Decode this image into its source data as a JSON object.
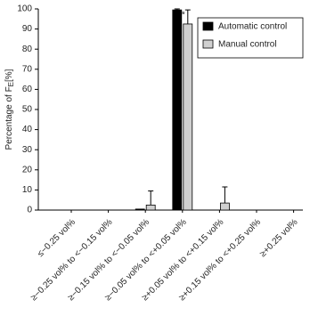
{
  "chart_data": {
    "type": "bar",
    "ylabel": "Percentage of F",
    "ylabel_sub": "E",
    "ylabel_suffix": "[%]",
    "categories": [
      "≤−0.25 vol%",
      "≥−0.25 vol% to <−0.15 vol%",
      "≥−0.15 vol% to <−0.05 vol%",
      "≥−0.05 vol% to <+0.05 vol%",
      "≥+0.05 vol% to <+0.15 vol%",
      "≥+0.15 vol% to <+0.25 vol%",
      "≥+0.25 vol%"
    ],
    "series": [
      {
        "name": "Automatic control",
        "color": "#000000",
        "values": [
          0,
          0,
          0.5,
          99.5,
          0,
          0,
          0
        ],
        "errors": [
          null,
          null,
          null,
          0.5,
          null,
          null,
          null
        ]
      },
      {
        "name": "Manual control",
        "color": "#d0d0d0",
        "values": [
          0,
          0,
          2.5,
          92.5,
          3.5,
          0,
          0
        ],
        "errors": [
          null,
          null,
          7,
          7,
          8,
          null,
          null
        ]
      }
    ],
    "annotation": "*",
    "ylim": [
      0,
      100
    ],
    "yticks": [
      0,
      10,
      20,
      30,
      40,
      50,
      60,
      70,
      80,
      90,
      100
    ],
    "legend": "top-right"
  }
}
